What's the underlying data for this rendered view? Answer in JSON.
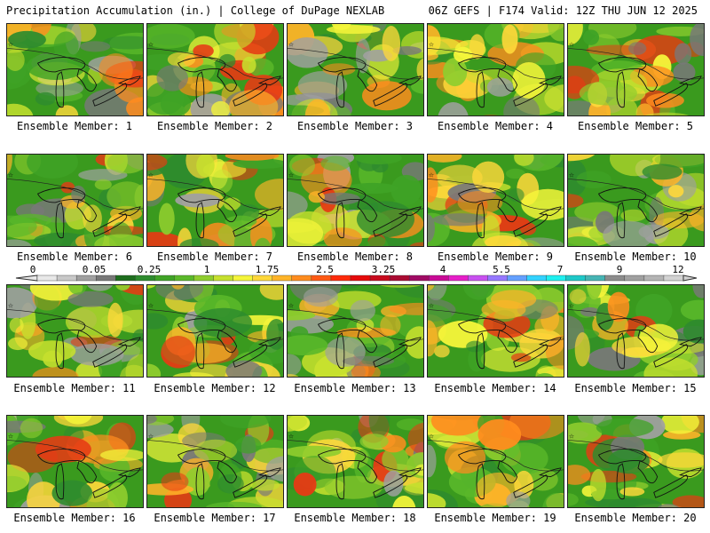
{
  "header": {
    "left": "Precipitation Accumulation (in.) | College of DuPage NEXLAB",
    "right": "06Z GEFS | F174 Valid: 12Z THU JUN 12 2025"
  },
  "members": [
    {
      "label": "Ensemble Member: 1"
    },
    {
      "label": "Ensemble Member: 2"
    },
    {
      "label": "Ensemble Member: 3"
    },
    {
      "label": "Ensemble Member: 4"
    },
    {
      "label": "Ensemble Member: 5"
    },
    {
      "label": "Ensemble Member: 6"
    },
    {
      "label": "Ensemble Member: 7"
    },
    {
      "label": "Ensemble Member: 8"
    },
    {
      "label": "Ensemble Member: 9"
    },
    {
      "label": "Ensemble Member: 10"
    },
    {
      "label": "Ensemble Member: 11"
    },
    {
      "label": "Ensemble Member: 12"
    },
    {
      "label": "Ensemble Member: 13"
    },
    {
      "label": "Ensemble Member: 14"
    },
    {
      "label": "Ensemble Member: 15"
    },
    {
      "label": "Ensemble Member: 16"
    },
    {
      "label": "Ensemble Member: 17"
    },
    {
      "label": "Ensemble Member: 18"
    },
    {
      "label": "Ensemble Member: 19"
    },
    {
      "label": "Ensemble Member: 20"
    }
  ],
  "colorbar": {
    "ticks": [
      "0",
      "0.05",
      "0.25",
      "1",
      "1.75",
      "2.5",
      "3.25",
      "4",
      "5.5",
      "7",
      "9",
      "12"
    ],
    "colors": [
      "#e8e8e8",
      "#c8c8c8",
      "#a0a0a0",
      "#787878",
      "#1e6e1e",
      "#2e8b2e",
      "#3fa326",
      "#5ab82a",
      "#8fcd2e",
      "#c6e02e",
      "#f5f53a",
      "#ffd83a",
      "#ffb428",
      "#ff8c1e",
      "#ff5a14",
      "#ff2a0a",
      "#e60a0a",
      "#c80a1e",
      "#aa0a32",
      "#a00a64",
      "#c80a96",
      "#e61ec8",
      "#c850f0",
      "#9678ff",
      "#64a0ff",
      "#32d2ff",
      "#1ef0f0",
      "#1ec8c8",
      "#46b4b4",
      "#8c8c8c",
      "#a0a0a0",
      "#b4b4b4",
      "#d2d2d2"
    ]
  }
}
